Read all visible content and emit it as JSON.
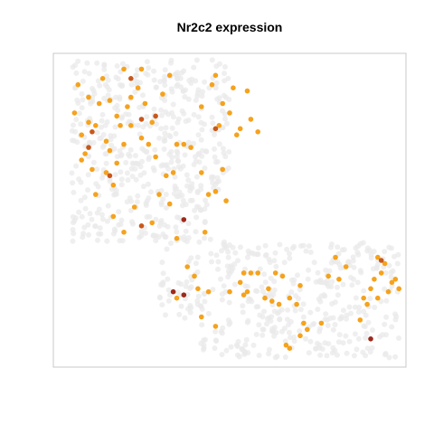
{
  "chart_data": {
    "type": "scatter",
    "title": "Nr2c2 expression",
    "xlabel": "",
    "ylabel": "",
    "xlim": [
      0,
      100
    ],
    "ylim": [
      0,
      100
    ],
    "grid": false,
    "legend": "none",
    "axes_visible": false,
    "colors": {
      "background_cells": "#e9e9e9",
      "expressing": "#f5a21d",
      "high": "#c8581c",
      "highest": "#9c2a1c",
      "frame": "#c8c8c8"
    },
    "background_region_description": [
      {
        "region": "upper-left lobe",
        "x_range": [
          5,
          50
        ],
        "y_range": [
          40,
          98
        ]
      },
      {
        "region": "lower band",
        "x_range": [
          30,
          98
        ],
        "y_range": [
          3,
          40
        ]
      }
    ],
    "series": [
      {
        "name": "",
        "level": 1,
        "color": "#f5a21d",
        "points": [
          {
            "x": 6,
            "y": 81
          },
          {
            "x": 7,
            "y": 90
          },
          {
            "x": 8,
            "y": 74
          },
          {
            "x": 9,
            "y": 68
          },
          {
            "x": 10,
            "y": 86
          },
          {
            "x": 10,
            "y": 78
          },
          {
            "x": 11,
            "y": 63
          },
          {
            "x": 12,
            "y": 77
          },
          {
            "x": 12,
            "y": 55
          },
          {
            "x": 13,
            "y": 84
          },
          {
            "x": 14,
            "y": 92
          },
          {
            "x": 15,
            "y": 72
          },
          {
            "x": 15,
            "y": 62
          },
          {
            "x": 16,
            "y": 69
          },
          {
            "x": 16,
            "y": 85
          },
          {
            "x": 17,
            "y": 58
          },
          {
            "x": 17,
            "y": 48
          },
          {
            "x": 18,
            "y": 80
          },
          {
            "x": 19,
            "y": 77
          },
          {
            "x": 20,
            "y": 71
          },
          {
            "x": 20,
            "y": 43
          },
          {
            "x": 21,
            "y": 83
          },
          {
            "x": 22,
            "y": 77
          },
          {
            "x": 23,
            "y": 51
          },
          {
            "x": 24,
            "y": 89
          },
          {
            "x": 25,
            "y": 95
          },
          {
            "x": 25,
            "y": 73
          },
          {
            "x": 26,
            "y": 84
          },
          {
            "x": 27,
            "y": 71
          },
          {
            "x": 28,
            "y": 78
          },
          {
            "x": 29,
            "y": 67
          },
          {
            "x": 30,
            "y": 55
          },
          {
            "x": 31,
            "y": 87
          },
          {
            "x": 32,
            "y": 61
          },
          {
            "x": 33,
            "y": 93
          },
          {
            "x": 33,
            "y": 52
          },
          {
            "x": 34,
            "y": 62
          },
          {
            "x": 35,
            "y": 71
          },
          {
            "x": 35,
            "y": 41
          },
          {
            "x": 37,
            "y": 71
          },
          {
            "x": 38,
            "y": 32
          },
          {
            "x": 40,
            "y": 29
          },
          {
            "x": 42,
            "y": 83
          },
          {
            "x": 43,
            "y": 43
          },
          {
            "x": 44,
            "y": 55
          },
          {
            "x": 45,
            "y": 90
          },
          {
            "x": 46,
            "y": 56
          },
          {
            "x": 47,
            "y": 77
          },
          {
            "x": 48,
            "y": 63
          },
          {
            "x": 49,
            "y": 53
          },
          {
            "x": 50,
            "y": 81
          },
          {
            "x": 51,
            "y": 89
          },
          {
            "x": 52,
            "y": 74
          },
          {
            "x": 53,
            "y": 76
          },
          {
            "x": 54,
            "y": 30
          },
          {
            "x": 55,
            "y": 88
          },
          {
            "x": 56,
            "y": 79
          },
          {
            "x": 41,
            "y": 25
          },
          {
            "x": 35,
            "y": 22
          },
          {
            "x": 42,
            "y": 16
          },
          {
            "x": 44,
            "y": 24
          },
          {
            "x": 46,
            "y": 13
          },
          {
            "x": 50,
            "y": 24
          },
          {
            "x": 53,
            "y": 27
          },
          {
            "x": 54,
            "y": 23
          },
          {
            "x": 58,
            "y": 30
          },
          {
            "x": 61,
            "y": 25
          },
          {
            "x": 63,
            "y": 30
          },
          {
            "x": 55,
            "y": 24
          },
          {
            "x": 56,
            "y": 30
          },
          {
            "x": 60,
            "y": 22
          },
          {
            "x": 62,
            "y": 21
          },
          {
            "x": 64,
            "y": 20
          },
          {
            "x": 65,
            "y": 29
          },
          {
            "x": 67,
            "y": 22
          },
          {
            "x": 69,
            "y": 20
          },
          {
            "x": 70,
            "y": 26
          },
          {
            "x": 70,
            "y": 10
          },
          {
            "x": 71,
            "y": 14
          },
          {
            "x": 72,
            "y": 12
          },
          {
            "x": 67,
            "y": 6
          },
          {
            "x": 66,
            "y": 7
          },
          {
            "x": 76,
            "y": 14
          },
          {
            "x": 78,
            "y": 29
          },
          {
            "x": 81,
            "y": 28
          },
          {
            "x": 83,
            "y": 32
          },
          {
            "x": 87,
            "y": 15
          },
          {
            "x": 88,
            "y": 22
          },
          {
            "x": 89,
            "y": 20
          },
          {
            "x": 90,
            "y": 25
          },
          {
            "x": 91,
            "y": 28
          },
          {
            "x": 92,
            "y": 22
          },
          {
            "x": 93,
            "y": 30
          },
          {
            "x": 94,
            "y": 33
          },
          {
            "x": 95,
            "y": 24
          },
          {
            "x": 96,
            "y": 27
          },
          {
            "x": 97,
            "y": 28
          },
          {
            "x": 98,
            "y": 25
          },
          {
            "x": 80,
            "y": 35
          },
          {
            "x": 92,
            "y": 35
          },
          {
            "x": 8,
            "y": 66
          },
          {
            "x": 18,
            "y": 65
          },
          {
            "x": 22,
            "y": 86
          },
          {
            "x": 28,
            "y": 46
          },
          {
            "x": 39,
            "y": 70
          },
          {
            "x": 42,
            "y": 62
          },
          {
            "x": 58,
            "y": 75
          },
          {
            "x": 48,
            "y": 84
          },
          {
            "x": 46,
            "y": 93
          },
          {
            "x": 20,
            "y": 95
          }
        ]
      },
      {
        "name": "",
        "level": 2,
        "color": "#c8581c",
        "points": [
          {
            "x": 10,
            "y": 70
          },
          {
            "x": 11,
            "y": 75
          },
          {
            "x": 16,
            "y": 61
          },
          {
            "x": 22,
            "y": 92
          },
          {
            "x": 25,
            "y": 79
          },
          {
            "x": 29,
            "y": 80
          },
          {
            "x": 25,
            "y": 45
          },
          {
            "x": 46,
            "y": 76
          },
          {
            "x": 93,
            "y": 34
          }
        ]
      },
      {
        "name": "",
        "level": 3,
        "color": "#9c2a1c",
        "points": [
          {
            "x": 37,
            "y": 47
          },
          {
            "x": 34,
            "y": 24
          },
          {
            "x": 37,
            "y": 23
          },
          {
            "x": 90,
            "y": 9
          }
        ]
      }
    ]
  }
}
